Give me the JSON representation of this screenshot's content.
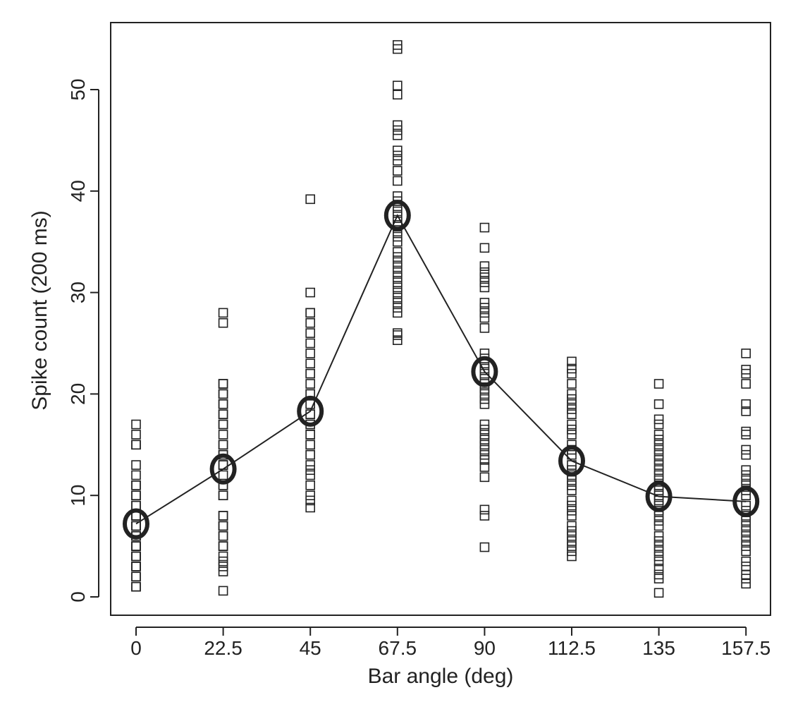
{
  "chart_data": {
    "type": "scatter",
    "title": "",
    "xlabel": "Bar angle (deg)",
    "ylabel": "Spike count (200 ms)",
    "categories": [
      "0",
      "22.5",
      "45",
      "67.5",
      "90",
      "112.5",
      "135",
      "157.5"
    ],
    "x": [
      0,
      22.5,
      45,
      67.5,
      90,
      112.5,
      135,
      157.5
    ],
    "xlim": [
      -6,
      164
    ],
    "ylim": [
      -2,
      56.5
    ],
    "yticks": [
      0,
      10,
      20,
      30,
      40,
      50
    ],
    "grid": false,
    "legend": "none",
    "series": [
      {
        "name": "trials",
        "marker": "open-square",
        "points": [
          [
            1,
            1,
            2,
            2,
            3,
            3,
            3,
            4,
            4,
            4,
            5,
            5,
            5,
            6,
            6,
            6,
            7,
            7,
            7,
            8,
            8,
            8,
            9,
            9,
            10,
            10,
            11,
            11,
            12,
            13,
            15,
            15,
            16,
            17
          ],
          [
            0.6,
            2.5,
            3,
            3.5,
            4,
            5,
            5,
            6,
            6,
            7,
            7,
            7,
            8,
            8,
            10,
            10,
            11,
            11,
            12,
            13,
            13,
            14,
            14,
            15,
            15,
            16,
            17,
            17,
            18,
            18,
            19,
            19,
            20,
            20,
            21,
            21,
            27,
            28
          ],
          [
            8.8,
            9.5,
            10,
            11,
            12,
            12.5,
            13,
            14,
            14,
            15,
            15,
            16,
            16,
            17,
            17,
            18,
            18,
            19,
            19,
            20,
            20,
            21,
            22,
            22,
            23,
            24,
            25,
            26,
            27,
            28,
            28,
            30,
            39.2
          ],
          [
            25.3,
            25.8,
            26,
            28,
            28.5,
            29,
            29.5,
            30,
            30.5,
            31,
            31.5,
            32,
            32.5,
            33,
            33.5,
            34,
            35,
            35.5,
            36,
            36.5,
            37,
            37.5,
            38,
            38.5,
            39,
            39.5,
            41,
            42,
            43,
            43.5,
            44,
            45.5,
            46,
            46.5,
            49.5,
            50.4,
            54,
            54.4
          ],
          [
            4.9,
            8,
            8.6,
            11.8,
            12.8,
            13.5,
            14,
            14.5,
            15,
            15.5,
            16,
            16.5,
            17,
            19,
            19.5,
            20,
            20.5,
            21,
            21.5,
            22,
            22.5,
            23,
            23.5,
            24,
            26.5,
            27.5,
            28,
            28.5,
            29,
            30.5,
            31,
            31.5,
            32,
            32.6,
            34.4,
            36.4
          ],
          [
            4,
            4.5,
            5,
            5.5,
            6,
            6.5,
            7,
            8,
            8.5,
            9,
            9.5,
            10.5,
            11,
            11.5,
            12,
            12.5,
            13,
            14,
            14.5,
            15,
            16,
            16.5,
            17,
            18,
            18.5,
            19,
            19.5,
            20,
            21,
            22,
            22.5,
            23.2
          ],
          [
            0.4,
            1.8,
            2.2,
            2.8,
            3.5,
            4,
            4.5,
            5,
            5.5,
            6,
            7,
            7.5,
            8,
            8.5,
            9,
            9.5,
            10,
            10.5,
            11,
            11.5,
            12,
            12.5,
            13,
            13.5,
            14,
            14.5,
            15,
            15.5,
            16,
            17,
            17.5,
            19,
            21
          ],
          [
            1.3,
            1.8,
            2.2,
            3,
            3.5,
            4.5,
            5,
            5.5,
            6,
            6.5,
            7,
            7.5,
            8,
            8.5,
            9,
            10,
            10.5,
            11,
            11.5,
            12,
            12.5,
            14,
            14.5,
            16,
            16.3,
            18.3,
            19,
            21,
            22,
            22.4,
            24
          ]
        ]
      },
      {
        "name": "mean",
        "marker": "large-open-circle",
        "line": true,
        "values": [
          7.2,
          12.6,
          18.3,
          37.6,
          22.2,
          13.4,
          9.9,
          9.4
        ]
      }
    ]
  }
}
